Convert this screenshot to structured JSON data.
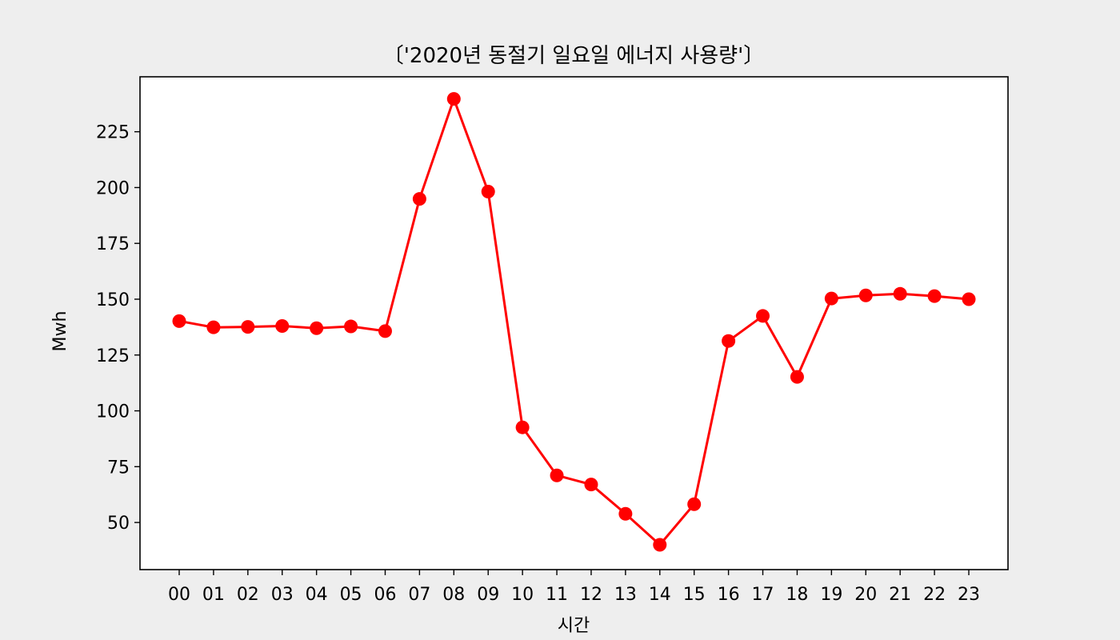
{
  "chart_data": {
    "type": "line",
    "title": "〔'2020년 동절기 일요일 에너지 사용량'〕",
    "xlabel": "시간",
    "ylabel": "Mwh",
    "categories": [
      "00",
      "01",
      "02",
      "03",
      "04",
      "05",
      "06",
      "07",
      "08",
      "09",
      "10",
      "11",
      "12",
      "13",
      "14",
      "15",
      "16",
      "17",
      "18",
      "19",
      "20",
      "21",
      "22",
      "23"
    ],
    "series": [
      {
        "values": [
          140.2,
          137.4,
          137.6,
          138.0,
          137.0,
          137.8,
          135.7,
          194.9,
          239.7,
          198.2,
          92.6,
          71.1,
          67.0,
          53.9,
          40.0,
          58.2,
          131.3,
          142.5,
          115.2,
          150.3,
          151.7,
          152.4,
          151.4,
          150.0
        ],
        "color": "#ff0000"
      }
    ],
    "ylim": [
      28.9,
      249.6
    ],
    "yticks": [
      50,
      75,
      100,
      125,
      150,
      175,
      200,
      225
    ],
    "grid": false,
    "marker": "circle"
  },
  "colors": {
    "background": "#eeeeee",
    "plot_area": "#ffffff",
    "axes": "#000000",
    "series": "#ff0000"
  }
}
